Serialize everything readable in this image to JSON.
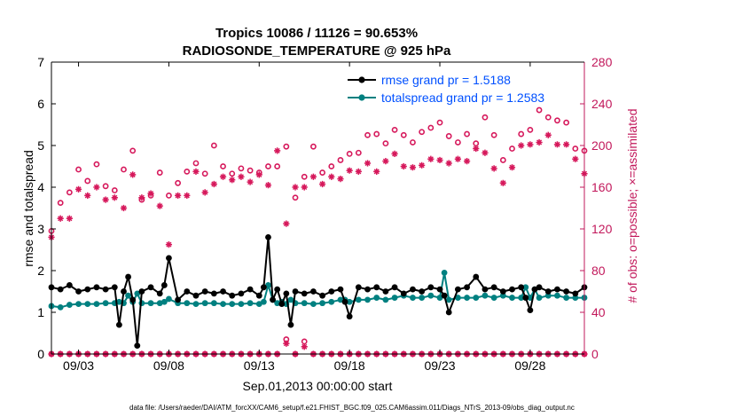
{
  "chart_data": {
    "type": "line",
    "title": "Tropics 10086 / 11126 = 90.653%",
    "subtitle": "RADIOSONDE_TEMPERATURE @ 925 hPa",
    "xlabel": "Sep.01,2013 00:00:00 start",
    "ylabel": "rmse and totalspread",
    "ylabel_right": "# of obs: o=possible; ×=assimilated",
    "x_day_range": [
      1.5,
      31
    ],
    "x_ticks": [
      3,
      8,
      13,
      18,
      23,
      28
    ],
    "x_tick_labels": [
      "09/03",
      "09/08",
      "09/13",
      "09/18",
      "09/23",
      "09/28"
    ],
    "ylim": [
      0,
      7
    ],
    "y_ticks": [
      "0",
      "1",
      "2",
      "3",
      "4",
      "5",
      "6",
      "7"
    ],
    "ylim_right": [
      0,
      280
    ],
    "y_ticks_right": [
      "0",
      "40",
      "80",
      "120",
      "160",
      "200",
      "240",
      "280"
    ],
    "legend_position": "top-right",
    "footnote": "data file: /Users/raeder/DAI/ATM_forcXX/CAM6_setup/f.e21.FHIST_BGC.f09_025.CAM6assim.011/Diags_NTrS_2013-09/obs_diag_output.nc",
    "colors": {
      "rmse": "#000000",
      "spread": "#008080",
      "obs": "#d6185b",
      "right_axis": "#c2185b",
      "legend_text": "#0050ff"
    },
    "series": [
      {
        "name": "rmse grand pr = 1.5188",
        "axis": "left",
        "x": [
          1.5,
          2,
          2.5,
          3,
          3.5,
          4,
          4.5,
          5,
          5.25,
          5.5,
          5.75,
          6,
          6.25,
          6.5,
          7,
          7.5,
          7.75,
          8,
          8.5,
          9,
          9.5,
          10,
          10.5,
          11,
          11.5,
          12,
          12.5,
          13,
          13.25,
          13.5,
          13.75,
          14,
          14.25,
          14.5,
          14.75,
          15,
          15.5,
          16,
          16.5,
          17,
          17.5,
          17.75,
          18,
          18.5,
          19,
          19.5,
          20,
          20.5,
          21,
          21.5,
          22,
          22.5,
          23,
          23.25,
          23.5,
          24,
          24.5,
          25,
          25.5,
          26,
          26.5,
          27,
          27.5,
          27.75,
          28,
          28.25,
          28.5,
          29,
          29.5,
          30,
          30.5,
          31
        ],
        "values": [
          1.6,
          1.55,
          1.65,
          1.5,
          1.55,
          1.6,
          1.55,
          1.6,
          0.7,
          1.5,
          1.85,
          1.3,
          0.2,
          1.5,
          1.6,
          1.45,
          1.65,
          2.3,
          1.3,
          1.5,
          1.4,
          1.5,
          1.45,
          1.5,
          1.4,
          1.45,
          1.55,
          1.4,
          1.6,
          2.8,
          1.3,
          1.55,
          1.2,
          1.45,
          0.7,
          1.5,
          1.45,
          1.5,
          1.4,
          1.5,
          1.55,
          1.25,
          0.9,
          1.6,
          1.55,
          1.6,
          1.5,
          1.6,
          1.45,
          1.55,
          1.5,
          1.6,
          1.55,
          1.4,
          1.0,
          1.55,
          1.6,
          1.85,
          1.55,
          1.6,
          1.5,
          1.55,
          1.6,
          1.35,
          1.05,
          1.55,
          1.6,
          1.5,
          1.55,
          1.5,
          1.45,
          1.6
        ]
      },
      {
        "name": "totalspread grand pr = 1.2583",
        "axis": "left",
        "x": [
          1.5,
          2,
          2.5,
          3,
          3.5,
          4,
          4.5,
          5,
          5.25,
          5.5,
          5.75,
          6,
          6.25,
          6.5,
          7,
          7.5,
          7.75,
          8,
          8.5,
          9,
          9.5,
          10,
          10.5,
          11,
          11.5,
          12,
          12.5,
          13,
          13.25,
          13.5,
          13.75,
          14,
          14.25,
          14.5,
          14.75,
          15,
          15.5,
          16,
          16.5,
          17,
          17.5,
          17.75,
          18,
          18.5,
          19,
          19.5,
          20,
          20.5,
          21,
          21.5,
          22,
          22.5,
          23,
          23.25,
          23.5,
          24,
          24.5,
          25,
          25.5,
          26,
          26.5,
          27,
          27.5,
          27.75,
          28,
          28.25,
          28.5,
          29,
          29.5,
          30,
          30.5,
          31
        ],
        "values": [
          1.15,
          1.12,
          1.18,
          1.2,
          1.2,
          1.2,
          1.22,
          1.22,
          1.25,
          1.22,
          1.4,
          1.25,
          1.45,
          1.22,
          1.22,
          1.22,
          1.25,
          1.32,
          1.22,
          1.22,
          1.2,
          1.22,
          1.22,
          1.2,
          1.2,
          1.2,
          1.22,
          1.2,
          1.25,
          1.65,
          1.3,
          1.22,
          1.25,
          1.2,
          1.3,
          1.22,
          1.22,
          1.2,
          1.22,
          1.25,
          1.3,
          1.3,
          1.25,
          1.3,
          1.3,
          1.35,
          1.3,
          1.35,
          1.4,
          1.35,
          1.35,
          1.4,
          1.35,
          1.95,
          1.3,
          1.35,
          1.35,
          1.35,
          1.4,
          1.35,
          1.4,
          1.35,
          1.35,
          1.6,
          1.35,
          1.55,
          1.35,
          1.4,
          1.4,
          1.35,
          1.35,
          1.35
        ]
      },
      {
        "name": "obs possible",
        "axis": "right",
        "x": [
          1.5,
          2,
          2.5,
          3,
          3.5,
          4,
          4.5,
          5,
          5.5,
          6,
          6.5,
          7,
          7.5,
          8,
          8.5,
          9,
          9.5,
          10,
          10.5,
          11,
          11.5,
          12,
          12.5,
          13,
          13.5,
          14,
          14.5,
          15,
          15.5,
          16,
          16.5,
          17,
          17.5,
          18,
          18.5,
          19,
          19.5,
          20,
          20.5,
          21,
          21.5,
          22,
          22.5,
          23,
          23.5,
          24,
          24.5,
          25,
          25.5,
          26,
          26.5,
          27,
          27.5,
          28,
          28.5,
          29,
          29.5,
          30,
          30.5,
          31
        ],
        "values": [
          118,
          145,
          155,
          177,
          166,
          182,
          161,
          157,
          177,
          195,
          148,
          152,
          174,
          152,
          164,
          175,
          183,
          173,
          200,
          180,
          173,
          178,
          176,
          174,
          180,
          180,
          199,
          150,
          170,
          199,
          174,
          180,
          186,
          192,
          193,
          210,
          211,
          202,
          215,
          210,
          203,
          213,
          217,
          222,
          209,
          203,
          211,
          202,
          227,
          210,
          186,
          197,
          211,
          215,
          234,
          227,
          224,
          222,
          197,
          195
        ]
      },
      {
        "name": "obs assimilated",
        "axis": "right",
        "x": [
          1.5,
          2,
          2.5,
          3,
          3.5,
          4,
          4.5,
          5,
          5.5,
          6,
          6.5,
          7,
          7.5,
          8,
          8.5,
          9,
          9.5,
          10,
          10.5,
          11,
          11.5,
          12,
          12.5,
          13,
          13.5,
          14,
          14.5,
          15,
          15.5,
          16,
          16.5,
          17,
          17.5,
          18,
          18.5,
          19,
          19.5,
          20,
          20.5,
          21,
          21.5,
          22,
          22.5,
          23,
          23.5,
          24,
          24.5,
          25,
          25.5,
          26,
          26.5,
          27,
          27.5,
          28,
          28.5,
          29,
          29.5,
          30,
          30.5,
          31
        ],
        "values": [
          112,
          130,
          130,
          158,
          152,
          160,
          148,
          150,
          140,
          172,
          150,
          154,
          142,
          105,
          152,
          152,
          175,
          155,
          163,
          170,
          167,
          170,
          165,
          172,
          162,
          195,
          125,
          160,
          160,
          170,
          163,
          170,
          168,
          176,
          175,
          183,
          175,
          185,
          192,
          180,
          179,
          181,
          187,
          186,
          183,
          187,
          185,
          197,
          193,
          178,
          164,
          179,
          200,
          201,
          203,
          210,
          201,
          201,
          187,
          173
        ]
      },
      {
        "name": "obs possible baseline",
        "axis": "right",
        "x": [
          1.5,
          2,
          2.5,
          3,
          3.5,
          4,
          4.5,
          5,
          5.5,
          6,
          6.5,
          7,
          7.5,
          8,
          8.5,
          9,
          9.5,
          10,
          10.5,
          11,
          11.5,
          12,
          12.5,
          13,
          13.5,
          14,
          14.5,
          15,
          15.5,
          16,
          16.5,
          17,
          17.5,
          18,
          18.5,
          19,
          19.5,
          20,
          20.5,
          21,
          21.5,
          22,
          22.5,
          23,
          23.5,
          24,
          24.5,
          25,
          25.5,
          26,
          26.5,
          27,
          27.5,
          28,
          28.5,
          29,
          29.5,
          30,
          30.5,
          31
        ],
        "values": [
          0,
          0,
          0,
          0,
          0,
          0,
          0,
          0,
          0,
          0,
          0,
          0,
          0,
          0,
          0,
          0,
          0,
          0,
          0,
          0,
          0,
          0,
          0,
          0,
          0,
          0,
          14,
          0,
          12,
          0,
          0,
          0,
          0,
          0,
          0,
          0,
          0,
          0,
          0,
          0,
          0,
          0,
          0,
          0,
          0,
          0,
          0,
          0,
          0,
          0,
          0,
          0,
          0,
          0,
          0,
          0,
          0,
          0,
          0,
          0
        ]
      },
      {
        "name": "obs assimilated baseline",
        "axis": "right",
        "x": [
          1.5,
          2,
          2.5,
          3,
          3.5,
          4,
          4.5,
          5,
          5.5,
          6,
          6.5,
          7,
          7.5,
          8,
          8.5,
          9,
          9.5,
          10,
          10.5,
          11,
          11.5,
          12,
          12.5,
          13,
          13.5,
          14,
          14.5,
          15,
          15.5,
          16,
          16.5,
          17,
          17.5,
          18,
          18.5,
          19,
          19.5,
          20,
          20.5,
          21,
          21.5,
          22,
          22.5,
          23,
          23.5,
          24,
          24.5,
          25,
          25.5,
          26,
          26.5,
          27,
          27.5,
          28,
          28.5,
          29,
          29.5,
          30,
          30.5,
          31
        ],
        "values": [
          0,
          0,
          0,
          0,
          0,
          0,
          0,
          0,
          0,
          0,
          0,
          0,
          0,
          0,
          0,
          0,
          0,
          0,
          0,
          0,
          0,
          0,
          0,
          0,
          0,
          0,
          10,
          0,
          7,
          0,
          0,
          0,
          0,
          0,
          0,
          0,
          0,
          0,
          0,
          0,
          0,
          0,
          0,
          0,
          0,
          0,
          0,
          0,
          0,
          0,
          0,
          0,
          0,
          0,
          0,
          0,
          0,
          0,
          0,
          0
        ]
      }
    ]
  }
}
